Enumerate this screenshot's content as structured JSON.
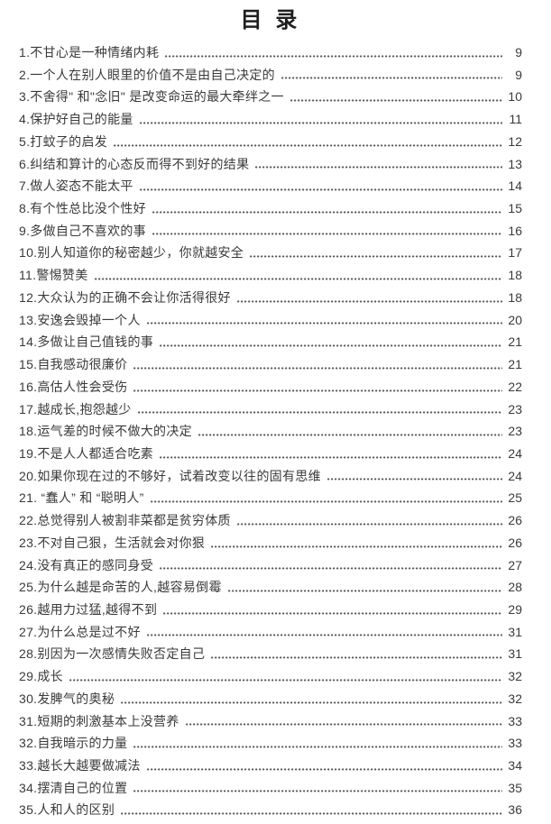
{
  "page": {
    "title": "目 录"
  },
  "toc": {
    "entries": [
      {
        "title": "1.不甘心是一种情绪内耗",
        "page": "9"
      },
      {
        "title": "2.一个人在别人眼里的价值不是由自己决定的",
        "page": "9"
      },
      {
        "title": "3.不舍得\" 和\"念旧\" 是改变命运的最大牵绊之一",
        "page": "10"
      },
      {
        "title": "4.保护好自己的能量",
        "page": "11"
      },
      {
        "title": "5.打蚊子的启发",
        "page": "12"
      },
      {
        "title": "6.纠结和算计的心态反而得不到好的结果",
        "page": "13"
      },
      {
        "title": "7.做人姿态不能太平",
        "page": "14"
      },
      {
        "title": "8.有个性总比没个性好",
        "page": "15"
      },
      {
        "title": "9.多做自己不喜欢的事",
        "page": "16"
      },
      {
        "title": "10.别人知道你的秘密越少，你就越安全",
        "page": "17"
      },
      {
        "title": "11.警惕赞美",
        "page": "18"
      },
      {
        "title": "12.大众认为的正确不会让你活得很好",
        "page": "18"
      },
      {
        "title": "13.安逸会毁掉一个人",
        "page": "20"
      },
      {
        "title": "14.多做让自己值钱的事",
        "page": "21"
      },
      {
        "title": "15.自我感动很廉价",
        "page": "21"
      },
      {
        "title": "16.高估人性会受伤",
        "page": "22"
      },
      {
        "title": "17.越成长,抱怨越少",
        "page": "23"
      },
      {
        "title": "18.运气差的时候不做大的决定",
        "page": "23"
      },
      {
        "title": "19.不是人人都适合吃素",
        "page": "24"
      },
      {
        "title": "20.如果你现在过的不够好，试着改变以往的固有思维",
        "page": "24"
      },
      {
        "title": "21. “蠢人” 和 “聪明人”",
        "page": "25"
      },
      {
        "title": "22.总觉得别人被割非菜都是贫穷体质",
        "page": "26"
      },
      {
        "title": "23.不对自己狠，生活就会对你狠",
        "page": "26"
      },
      {
        "title": "24.没有真正的感同身受",
        "page": "27"
      },
      {
        "title": "25.为什么越是命苦的人,越容易倒霉",
        "page": "28"
      },
      {
        "title": "26.越用力过猛,越得不到",
        "page": "29"
      },
      {
        "title": "27.为什么总是过不好",
        "page": "31"
      },
      {
        "title": "28.别因为一次感情失败否定自己",
        "page": "31"
      },
      {
        "title": "29.成长",
        "page": "32"
      },
      {
        "title": "30.发脾气的奥秘",
        "page": "32"
      },
      {
        "title": "31.短期的刺激基本上没营养",
        "page": "33"
      },
      {
        "title": "32.自我暗示的力量",
        "page": "33"
      },
      {
        "title": "33.越长大越要做减法",
        "page": "34"
      },
      {
        "title": "34.摆清自己的位置",
        "page": "35"
      },
      {
        "title": "35.人和人的区别",
        "page": "36"
      }
    ]
  }
}
